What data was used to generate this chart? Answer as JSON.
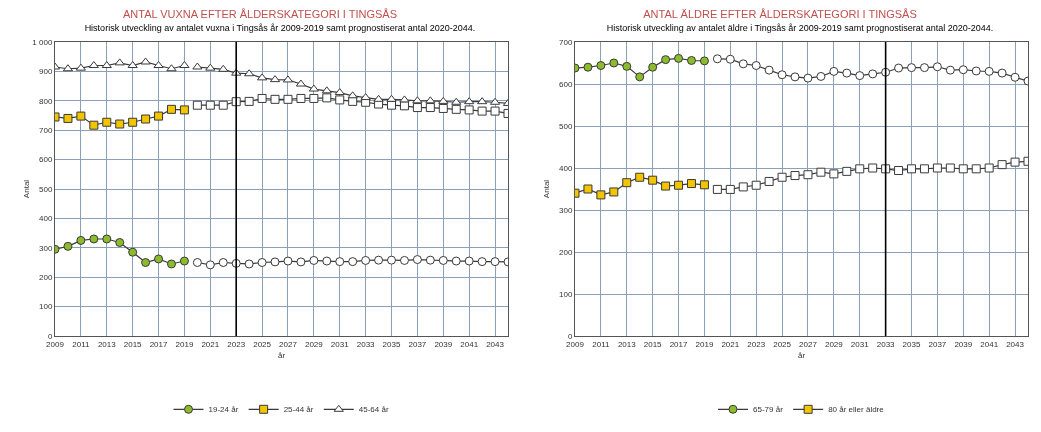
{
  "chart_data": [
    {
      "type": "line",
      "title": "ANTAL VUXNA EFTER ÅLDERSKATEGORI I TINGSÅS",
      "subtitle": "Historisk utveckling av antalet vuxna i Tingsås år 2009-2019 samt prognostiserat antal 2020-2044.",
      "xlabel": "år",
      "ylabel": "Antal",
      "xlim": [
        2009,
        2044
      ],
      "xticks": [
        2009,
        2011,
        2013,
        2015,
        2017,
        2019,
        2021,
        2023,
        2025,
        2027,
        2029,
        2031,
        2033,
        2035,
        2037,
        2039,
        2041,
        2043
      ],
      "ylim": [
        0,
        1000
      ],
      "yticks": [
        0,
        100,
        200,
        300,
        400,
        500,
        600,
        700,
        800,
        900,
        {
          "value": 1000,
          "label": "1 000"
        }
      ],
      "grid": true,
      "legend": "bottom",
      "ref_lines": [
        {
          "axis": "x",
          "value": 2023,
          "color": "#000000"
        }
      ],
      "series": [
        {
          "color": "#ffffff",
          "marker": "circle",
          "x": [
            2020,
            2021,
            2022,
            2023,
            2024,
            2025,
            2026,
            2027,
            2028,
            2029,
            2030,
            2031,
            2032,
            2033,
            2034,
            2035,
            2036,
            2037,
            2038,
            2039,
            2040,
            2041,
            2042,
            2043,
            2044
          ],
          "values": [
            250,
            242,
            250,
            247,
            245,
            250,
            252,
            255,
            252,
            257,
            255,
            253,
            253,
            257,
            258,
            258,
            257,
            260,
            258,
            257,
            255,
            255,
            253,
            253,
            252
          ]
        },
        {
          "color": "#ffffff",
          "marker": "square",
          "x": [
            2020,
            2021,
            2022,
            2023,
            2024,
            2025,
            2026,
            2027,
            2028,
            2029,
            2030,
            2031,
            2032,
            2033,
            2034,
            2035,
            2036,
            2037,
            2038,
            2039,
            2040,
            2041,
            2042,
            2043,
            2044
          ],
          "values": [
            785,
            785,
            785,
            797,
            798,
            808,
            805,
            805,
            808,
            808,
            810,
            803,
            798,
            795,
            789,
            785,
            783,
            777,
            777,
            774,
            771,
            769,
            765,
            765,
            757
          ]
        },
        {
          "color": "#ffffff",
          "marker": "triangle",
          "x": [
            2020,
            2021,
            2022,
            2023,
            2024,
            2025,
            2026,
            2027,
            2028,
            2029,
            2030,
            2031,
            2032,
            2033,
            2034,
            2035,
            2036,
            2037,
            2038,
            2039,
            2040,
            2041,
            2042,
            2043,
            2044
          ],
          "values": [
            915,
            911,
            907,
            894,
            892,
            878,
            872,
            871,
            857,
            840,
            834,
            828,
            817,
            811,
            805,
            805,
            803,
            800,
            800,
            798,
            795,
            797,
            797,
            795,
            791
          ]
        },
        {
          "name": "19-24 år",
          "color": "#8dbb2e",
          "marker": "circle",
          "x": [
            2009,
            2010,
            2011,
            2012,
            2013,
            2014,
            2015,
            2016,
            2017,
            2018,
            2019
          ],
          "values": [
            295,
            305,
            325,
            330,
            330,
            318,
            285,
            250,
            262,
            245,
            255
          ]
        },
        {
          "name": "25-44 år",
          "color": "#f2c500",
          "marker": "square",
          "x": [
            2009,
            2010,
            2011,
            2012,
            2013,
            2014,
            2015,
            2016,
            2017,
            2018,
            2019
          ],
          "values": [
            745,
            740,
            748,
            717,
            727,
            721,
            727,
            738,
            748,
            771,
            769
          ]
        },
        {
          "name": "45-64 år",
          "color": "#ffffff",
          "marker": "triangle",
          "x": [
            2009,
            2010,
            2011,
            2012,
            2013,
            2014,
            2015,
            2016,
            2017,
            2018,
            2019
          ],
          "values": [
            915,
            909,
            911,
            920,
            920,
            929,
            920,
            932,
            920,
            909,
            920
          ]
        }
      ]
    },
    {
      "type": "line",
      "title": "ANTAL ÄLDRE EFTER ÅLDERSKATEGORI I TINGSÅS",
      "subtitle": "Historisk utveckling av antalet äldre i Tingsås år 2009-2019 samt prognostiserat antal 2020-2044.",
      "xlabel": "år",
      "ylabel": "Antal",
      "xlim": [
        2009,
        2044
      ],
      "xticks": [
        2009,
        2011,
        2013,
        2015,
        2017,
        2019,
        2021,
        2023,
        2025,
        2027,
        2029,
        2031,
        2033,
        2035,
        2037,
        2039,
        2041,
        2043
      ],
      "ylim": [
        0,
        700
      ],
      "yticks": [
        0,
        100,
        200,
        300,
        400,
        500,
        600,
        700
      ],
      "grid": true,
      "legend": "bottom",
      "ref_lines": [
        {
          "axis": "x",
          "value": 2033,
          "color": "#000000"
        }
      ],
      "series": [
        {
          "color": "#ffffff",
          "marker": "circle",
          "x": [
            2020,
            2021,
            2022,
            2023,
            2024,
            2025,
            2026,
            2027,
            2028,
            2029,
            2030,
            2031,
            2032,
            2033,
            2034,
            2035,
            2036,
            2037,
            2038,
            2039,
            2040,
            2041,
            2042,
            2043,
            2044
          ],
          "values": [
            660,
            659,
            648,
            644,
            633,
            622,
            617,
            614,
            618,
            630,
            626,
            620,
            624,
            628,
            638,
            639,
            639,
            641,
            633,
            634,
            631,
            630,
            626,
            616,
            607
          ]
        },
        {
          "color": "#ffffff",
          "marker": "square",
          "x": [
            2020,
            2021,
            2022,
            2023,
            2024,
            2025,
            2026,
            2027,
            2028,
            2029,
            2030,
            2031,
            2032,
            2033,
            2034,
            2035,
            2036,
            2037,
            2038,
            2039,
            2040,
            2041,
            2042,
            2043,
            2044
          ],
          "values": [
            349,
            349,
            355,
            359,
            368,
            378,
            382,
            384,
            390,
            386,
            392,
            398,
            400,
            398,
            394,
            398,
            398,
            400,
            400,
            398,
            398,
            400,
            408,
            414,
            416
          ]
        },
        {
          "name": "65-79 år",
          "color": "#8dbb2e",
          "marker": "circle",
          "x": [
            2009,
            2010,
            2011,
            2012,
            2013,
            2014,
            2015,
            2016,
            2017,
            2018,
            2019
          ],
          "values": [
            638,
            640,
            644,
            650,
            642,
            617,
            640,
            658,
            661,
            656,
            655
          ]
        },
        {
          "name": "80 år eller äldre",
          "color": "#f2c500",
          "marker": "square",
          "x": [
            2009,
            2010,
            2011,
            2012,
            2013,
            2014,
            2015,
            2016,
            2017,
            2018,
            2019
          ],
          "values": [
            340,
            350,
            336,
            343,
            365,
            378,
            371,
            357,
            359,
            363,
            360
          ]
        }
      ]
    }
  ]
}
